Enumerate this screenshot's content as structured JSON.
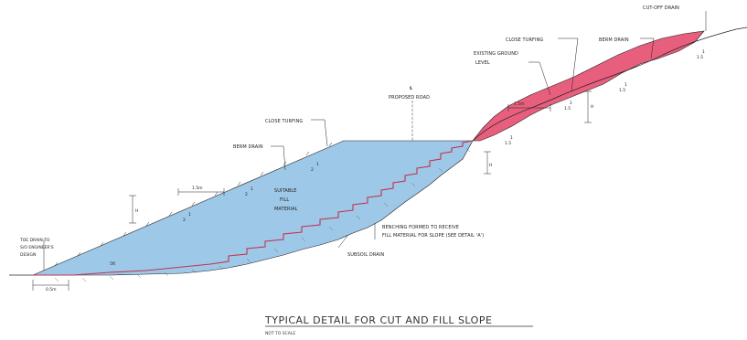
{
  "title": "TYPICAL DETAIL FOR CUT AND FILL SLOPE",
  "subtitle": "NOT TO SCALE",
  "labels": {
    "cut_off_drain": "CUT-OFF DRAIN",
    "close_turfing_top": "CLOSE TURFING",
    "berm_drain_top": "BERM DRAIN",
    "existing_ground": "EXISTING GROUND",
    "level": "LEVEL",
    "centerline": "℄",
    "proposed_road": "PROPOSED ROAD",
    "close_turfing_fill": "CLOSE TURFING",
    "berm_drain_fill": "BERM DRAIN",
    "suitable": "SUITABLE",
    "fill": "FILL",
    "material": "MATERIAL",
    "toe_drain_1": "TOE DRAIN TO",
    "toe_drain_2": "S/O ENGINEER'S",
    "toe_drain_3": "DESIGN",
    "benching_1": "BENCHING FORMED TO RECEIVE",
    "benching_2": "FILL MATERIAL FOR SLOPE (SEE DETAIL 'A')",
    "subsoil_drain": "SUBSOIL DRAIN",
    "dim_1_5m_fill": "1.5m",
    "dim_1_5m_cut": "1.5m",
    "dim_0_5m": "0.5m",
    "dim_H_fill": "H",
    "dim_H_cut": "H",
    "dim_H_road": "H",
    "dim_5ft": "5ft",
    "slope_fill_1": "2",
    "slope_fill_2": "2",
    "slope_fill_3": "2",
    "slope_cut_1": "1.5",
    "slope_cut_2": "1.5",
    "slope_cut_3": "1.5",
    "slope_cut_4": "1.5",
    "slope_one": "1"
  },
  "colors": {
    "fill_material": "#9ec8e8",
    "cut_material": "#e85f7d",
    "ground_hatch": "#c0334f",
    "outline": "#222222"
  }
}
